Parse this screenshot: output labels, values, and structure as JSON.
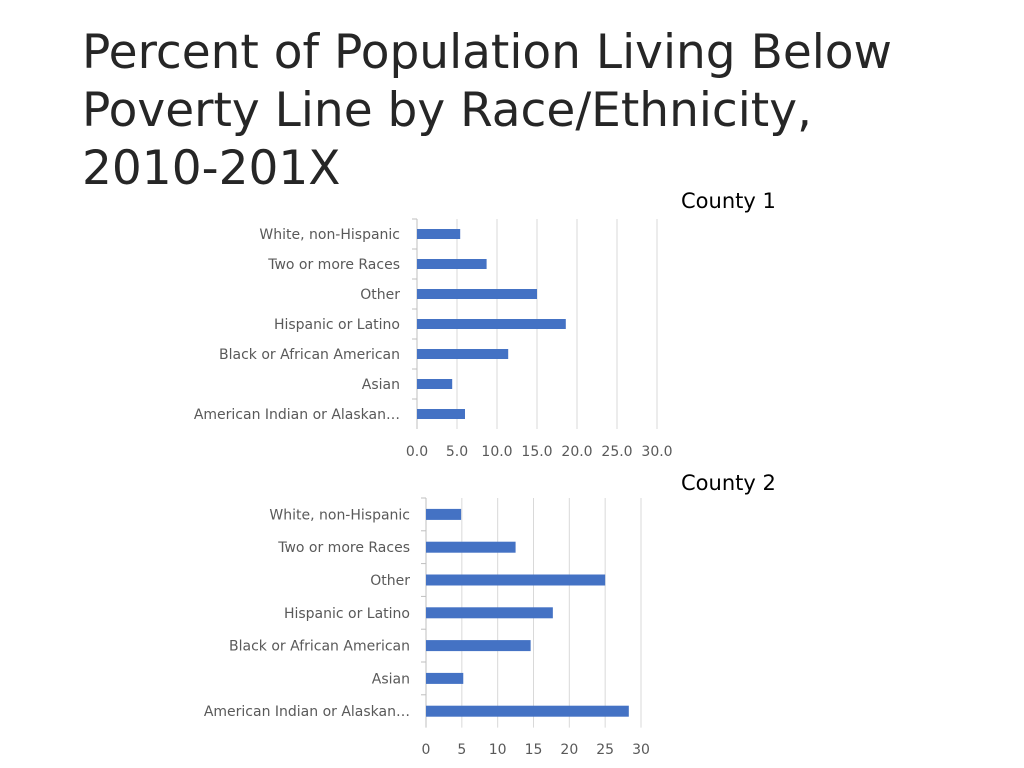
{
  "slide": {
    "title": "Percent of Population Living Below Poverty Line by Race/Ethnicity, 2010-201X"
  },
  "chart_data": [
    {
      "type": "bar",
      "orientation": "horizontal",
      "title": "County 1",
      "categories": [
        "White, non-Hispanic",
        "Two or more Races",
        "Other",
        "Hispanic or Latino",
        "Black or African American",
        "Asian",
        "American Indian or Alaskan…"
      ],
      "values": [
        5.4,
        8.7,
        15.0,
        18.6,
        11.4,
        4.4,
        6.0
      ],
      "xlim": [
        0,
        30
      ],
      "ticks": [
        "0.0",
        "5.0",
        "10.0",
        "15.0",
        "20.0",
        "25.0",
        "30.0"
      ],
      "grid": true,
      "bar_color": "#4472C4"
    },
    {
      "type": "bar",
      "orientation": "horizontal",
      "title": "County 2",
      "categories": [
        "White, non-Hispanic",
        "Two or more Races",
        "Other",
        "Hispanic or Latino",
        "Black or African American",
        "Asian",
        "American Indian or Alaskan…"
      ],
      "values": [
        4.9,
        12.5,
        25.0,
        17.7,
        14.6,
        5.2,
        28.3
      ],
      "xlim": [
        0,
        30
      ],
      "ticks": [
        "0",
        "5",
        "10",
        "15",
        "20",
        "25",
        "30"
      ],
      "grid": true,
      "bar_color": "#4472C4"
    }
  ]
}
